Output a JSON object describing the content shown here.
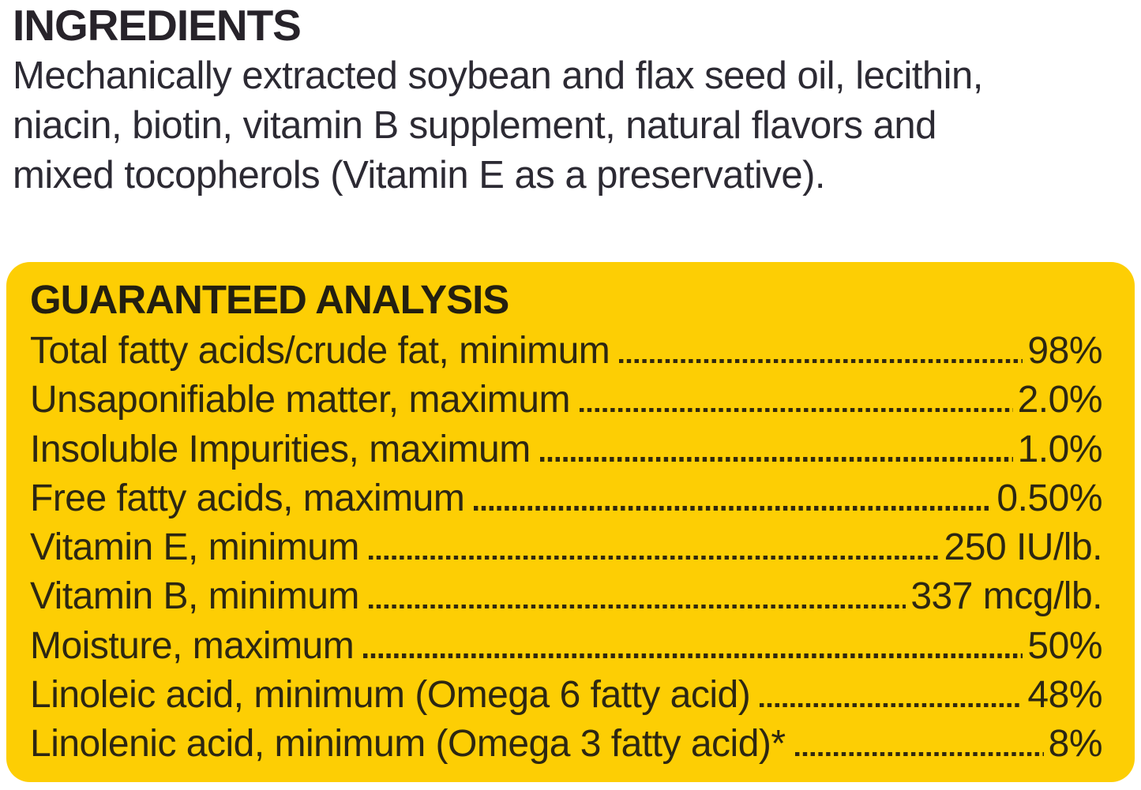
{
  "ingredients": {
    "title": "INGREDIENTS",
    "lines": [
      "Mechanically extracted soybean and flax seed oil, lecithin,",
      "niacin, biotin, vitamin B supplement, natural flavors and",
      "mixed tocopherols (Vitamin E as a preservative)."
    ]
  },
  "guaranteed_analysis": {
    "title": "GUARANTEED ANALYSIS",
    "panel_color": "#fdce04",
    "text_color": "#2d2712",
    "rows": [
      {
        "label": "Total fatty acids/crude fat, minimum",
        "value": "98%"
      },
      {
        "label": "Unsaponifiable matter, maximum",
        "value": "2.0%"
      },
      {
        "label": "Insoluble Impurities, maximum",
        "value": "1.0%"
      },
      {
        "label": "Free fatty acids, maximum",
        "value": "0.50%"
      },
      {
        "label": "Vitamin E, minimum",
        "value": "250 IU/lb."
      },
      {
        "label": "Vitamin B, minimum",
        "value": "337 mcg/lb."
      },
      {
        "label": "Moisture, maximum",
        "value": "50%"
      },
      {
        "label": "Linoleic acid, minimum (Omega 6 fatty acid)",
        "value": "48%"
      },
      {
        "label": "Linolenic acid, minimum (Omega 3 fatty acid)*",
        "value": "8%"
      }
    ]
  }
}
